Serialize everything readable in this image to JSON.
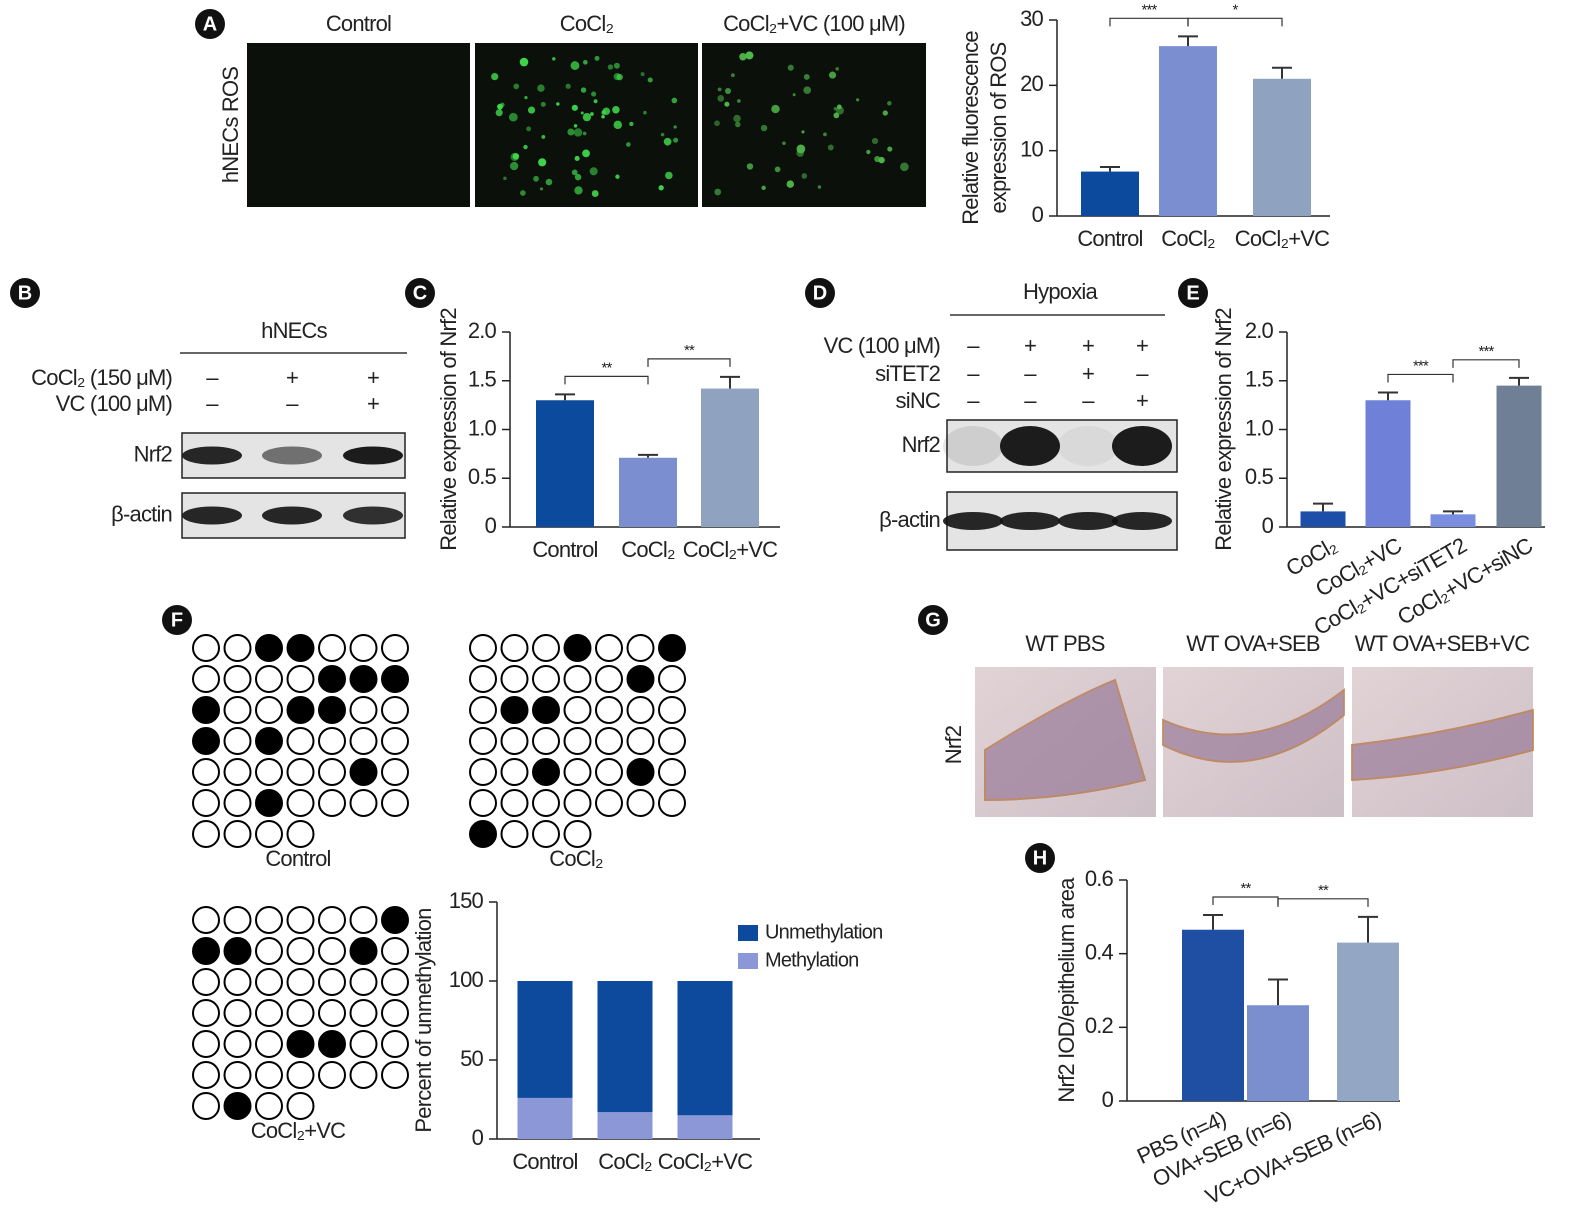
{
  "panel_letters": [
    "A",
    "B",
    "C",
    "D",
    "E",
    "F",
    "G",
    "H"
  ],
  "ros_images": {
    "ylabel": "hNECs ROS",
    "titles": [
      "Control",
      "CoCl₂",
      "CoCl₂+VC (100 μM)"
    ]
  },
  "blots": [
    {
      "title": "hNECs",
      "conditions": [
        {
          "label": "CoCl₂ (150 μM)",
          "signs": [
            "–",
            "+",
            "+"
          ]
        },
        {
          "label": "VC (100 μM)",
          "signs": [
            "–",
            "–",
            "+"
          ]
        }
      ],
      "rows": [
        "Nrf2",
        "β-actin"
      ]
    },
    {
      "title": "Hypoxia",
      "conditions": [
        {
          "label": "VC (100 μM)",
          "signs": [
            "–",
            "+",
            "+",
            "+"
          ]
        },
        {
          "label": "siTET2",
          "signs": [
            "–",
            "–",
            "+",
            "–"
          ]
        },
        {
          "label": "siNC",
          "signs": [
            "–",
            "–",
            "–",
            "+"
          ]
        }
      ],
      "rows": [
        "Nrf2",
        "β-actin"
      ]
    }
  ],
  "methylation": {
    "grids": [
      {
        "label": "Control",
        "rows": [
          [
            0,
            0,
            1,
            1,
            0,
            0,
            0
          ],
          [
            0,
            0,
            0,
            0,
            1,
            1,
            1
          ],
          [
            1,
            0,
            0,
            1,
            1,
            0,
            0
          ],
          [
            1,
            0,
            1,
            0,
            0,
            0,
            0
          ],
          [
            0,
            0,
            0,
            0,
            0,
            1,
            0
          ],
          [
            0,
            0,
            1,
            0,
            0,
            0,
            0
          ],
          [
            0,
            0,
            0,
            0
          ]
        ]
      },
      {
        "label": "CoCl₂",
        "rows": [
          [
            0,
            0,
            0,
            1,
            0,
            0,
            1
          ],
          [
            0,
            0,
            0,
            0,
            0,
            1,
            0
          ],
          [
            0,
            1,
            1,
            0,
            0,
            0,
            0
          ],
          [
            0,
            0,
            0,
            0,
            0,
            0,
            0
          ],
          [
            0,
            0,
            1,
            0,
            0,
            1,
            0
          ],
          [
            0,
            0,
            0,
            0,
            0,
            0,
            0
          ],
          [
            1,
            0,
            0,
            0
          ]
        ]
      },
      {
        "label": "CoCl₂+VC",
        "rows": [
          [
            0,
            0,
            0,
            0,
            0,
            0,
            1
          ],
          [
            1,
            1,
            0,
            0,
            0,
            1,
            0
          ],
          [
            0,
            0,
            0,
            0,
            0,
            0,
            0
          ],
          [
            0,
            0,
            0,
            0,
            0,
            0,
            0
          ],
          [
            0,
            0,
            0,
            1,
            1,
            0,
            0
          ],
          [
            0,
            0,
            0,
            0,
            0,
            0,
            0
          ],
          [
            0,
            1,
            0,
            0
          ]
        ]
      }
    ]
  },
  "histology": {
    "ylabel": "Nrf2",
    "titles": [
      "WT PBS",
      "WT OVA+SEB",
      "WT OVA+SEB+VC"
    ]
  },
  "chart_data": [
    {
      "type": "bar",
      "ylabel": [
        "Relative fluorescence",
        "expression of ROS"
      ],
      "categories": [
        "Control",
        "CoCl₂",
        "CoCl₂+VC"
      ],
      "values": [
        6.8,
        26,
        21
      ],
      "errors": [
        0.7,
        1.5,
        1.7
      ],
      "colors": [
        "#0b4a9c",
        "#7b8fd0",
        "#8fa3c0"
      ],
      "ylim": [
        0,
        30
      ],
      "yticks": [
        0,
        10,
        20,
        30
      ],
      "significance": [
        {
          "from": "Control",
          "to": "CoCl₂",
          "label": "***"
        },
        {
          "from": "CoCl₂",
          "to": "CoCl₂+VC",
          "label": "*"
        }
      ]
    },
    {
      "type": "bar",
      "ylabel": "Relative expression of Nrf2",
      "categories": [
        "Control",
        "CoCl₂",
        "CoCl₂+VC"
      ],
      "values": [
        1.3,
        0.71,
        1.42
      ],
      "errors": [
        0.06,
        0.03,
        0.12
      ],
      "colors": [
        "#0b4a9c",
        "#7b8fd0",
        "#8fa3c0"
      ],
      "ylim": [
        0,
        2
      ],
      "yticks": [
        0,
        0.5,
        {
          "value": 1,
          "label": "1.0"
        },
        1.5,
        {
          "value": 2,
          "label": "2.0"
        }
      ],
      "significance": [
        {
          "from": "Control",
          "to": "CoCl₂",
          "label": "**"
        },
        {
          "from": "CoCl₂",
          "to": "CoCl₂+VC",
          "label": "**"
        }
      ]
    },
    {
      "type": "bar",
      "ylabel": "Relative expression of Nrf2",
      "categories": [
        "CoCl₂",
        "CoCl₂+VC",
        "CoCl₂+VC+siTET2",
        "CoCl₂+VC+siNC"
      ],
      "values": [
        0.16,
        1.3,
        0.13,
        1.45
      ],
      "errors": [
        0.08,
        0.08,
        0.03,
        0.08
      ],
      "colors": [
        "#1e4fa8",
        "#6f80d9",
        "#7a8ee0",
        "#6f7f95"
      ],
      "ylim": [
        0,
        2
      ],
      "yticks": [
        0,
        0.5,
        {
          "value": 1,
          "label": "1.0"
        },
        1.5,
        {
          "value": 2,
          "label": "2.0"
        }
      ],
      "significance": [
        {
          "from": "CoCl₂+VC",
          "to": "CoCl₂+VC+siTET2",
          "label": "***"
        },
        {
          "from": "CoCl₂+VC+siTET2",
          "to": "CoCl₂+VC+siNC",
          "label": "***"
        }
      ]
    },
    {
      "type": "stacked_bar",
      "ylabel": "Percent of unmethylation",
      "categories": [
        "Control",
        "CoCl₂",
        "CoCl₂+VC"
      ],
      "series": [
        {
          "name": "Unmethylation",
          "color": "#0d4a9e",
          "values": [
            74,
            83,
            85
          ]
        },
        {
          "name": "Methylation",
          "color": "#8b97d6",
          "values": [
            26,
            17,
            15
          ]
        }
      ],
      "ylim": [
        0,
        150
      ],
      "yticks": [
        0,
        50,
        100,
        150
      ]
    },
    {
      "type": "bar",
      "ylabel": "Nrf2 IOD/epithelium area",
      "categories": [
        "PBS (n=4)",
        "OVA+SEB (n=6)",
        "VC+OVA+SEB (n=6)"
      ],
      "values": [
        0.465,
        0.26,
        0.43
      ],
      "errors": [
        0.04,
        0.07,
        0.07
      ],
      "colors": [
        "#1f4fa3",
        "#7b8fcf",
        "#93a7c4"
      ],
      "ylim": [
        0,
        0.6
      ],
      "yticks": [
        0,
        0.2,
        0.4,
        0.6
      ],
      "significance": [
        {
          "from": "PBS (n=4)",
          "to": "OVA+SEB (n=6)",
          "label": "**"
        },
        {
          "from": "OVA+SEB (n=6)",
          "to": "VC+OVA+SEB (n=6)",
          "label": "**"
        }
      ]
    }
  ]
}
